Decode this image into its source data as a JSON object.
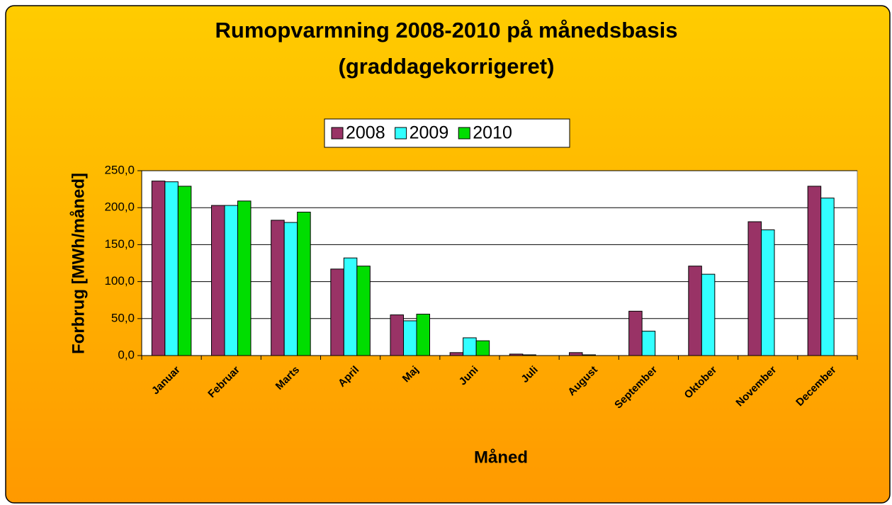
{
  "chart_data": {
    "type": "bar",
    "title": "Rumopvarmning 2008-2010 på månedsbasis",
    "subtitle": "(graddagekorrigeret)",
    "x_label": "Måned",
    "y_label": "Forbrug [MWh/måned]",
    "categories": [
      "Januar",
      "Februar",
      "Marts",
      "April",
      "Maj",
      "Juni",
      "Juli",
      "August",
      "September",
      "Oktober",
      "November",
      "December"
    ],
    "series": [
      {
        "name": "2008",
        "color": "#993366",
        "values": [
          236,
          203,
          183,
          117,
          55,
          4,
          2,
          4,
          60,
          121,
          181,
          229
        ]
      },
      {
        "name": "2009",
        "color": "#33FFFF",
        "values": [
          235,
          203,
          180,
          132,
          47,
          24,
          1,
          1,
          33,
          110,
          170,
          213
        ]
      },
      {
        "name": "2010",
        "color": "#00DD00",
        "values": [
          229,
          209,
          194,
          121,
          56,
          20,
          null,
          null,
          null,
          null,
          null,
          null
        ]
      }
    ],
    "ylim": [
      0,
      250
    ],
    "yticks": [
      {
        "value": 0,
        "label": "0,0"
      },
      {
        "value": 50,
        "label": "50,0"
      },
      {
        "value": 100,
        "label": "100,0"
      },
      {
        "value": 150,
        "label": "150,0"
      },
      {
        "value": 200,
        "label": "200,0"
      },
      {
        "value": 250,
        "label": "250,0"
      }
    ],
    "grid": true
  }
}
